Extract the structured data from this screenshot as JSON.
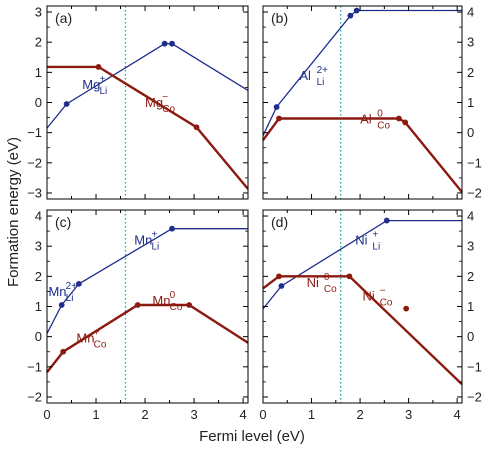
{
  "figure": {
    "xlabel": "Fermi level (eV)",
    "ylabel": "Formation energy (eV)"
  },
  "colors": {
    "blue": "#1f2e8c",
    "red": "#8b1a10",
    "marker_line": "#1aa3a3",
    "frame": "#000000"
  },
  "chart_data": [
    {
      "type": "line",
      "panel": "(a)",
      "xlim": [
        0,
        4.1
      ],
      "ylim": [
        -3.2,
        3.2
      ],
      "yticks": [
        -3,
        -2,
        -1,
        0,
        1,
        2,
        3
      ],
      "xticks": [],
      "ytick_side": "left",
      "fermi_marker_x": 1.6,
      "series": [
        {
          "color": "blue",
          "label": {
            "base": "Mg",
            "sub": "Li",
            "sup": "+"
          },
          "label_at": [
            0.72,
            0.45
          ],
          "x": [
            0,
            0.4,
            2.4,
            2.55,
            4.1
          ],
          "y": [
            -0.85,
            -0.05,
            1.95,
            1.95,
            0.4
          ],
          "markers": [
            1,
            2,
            3
          ]
        },
        {
          "color": "red",
          "label": {
            "base": "Mg",
            "sub": "Co",
            "sup": "−"
          },
          "label_at": [
            2.0,
            -0.15
          ],
          "x": [
            0,
            1.05,
            3.05,
            4.1
          ],
          "y": [
            1.18,
            1.18,
            -0.82,
            -2.87
          ],
          "markers": [
            1,
            2
          ]
        }
      ]
    },
    {
      "type": "line",
      "panel": "(b)",
      "xlim": [
        0,
        4.1
      ],
      "ylim": [
        -2.2,
        4.2
      ],
      "yticks": [
        -2,
        -1,
        0,
        1,
        2,
        3,
        4
      ],
      "xticks": [],
      "ytick_side": "right",
      "fermi_marker_x": 1.6,
      "series": [
        {
          "color": "blue",
          "label": {
            "base": "Al",
            "sub": "Li",
            "sup": "2+"
          },
          "label_at": [
            0.75,
            1.75
          ],
          "x": [
            0,
            0.28,
            1.8,
            1.93,
            4.1
          ],
          "y": [
            -0.1,
            0.85,
            3.88,
            4.05,
            4.05
          ],
          "markers": [
            1,
            2,
            3
          ]
        },
        {
          "color": "red",
          "label": {
            "base": "Al",
            "sub": "Co",
            "sup": "0"
          },
          "label_at": [
            2.0,
            0.3
          ],
          "x": [
            0,
            0.33,
            2.8,
            2.93,
            4.1
          ],
          "y": [
            -0.25,
            0.47,
            0.47,
            0.34,
            -1.97
          ],
          "markers": [
            1,
            2,
            3
          ]
        }
      ]
    },
    {
      "type": "line",
      "panel": "(c)",
      "xlim": [
        0,
        4.1
      ],
      "ylim": [
        -2.2,
        4.2
      ],
      "yticks": [
        -2,
        -1,
        0,
        1,
        2,
        3,
        4
      ],
      "xticks": [
        0,
        1,
        2,
        3,
        4
      ],
      "ytick_side": "left",
      "fermi_marker_x": 1.6,
      "series": [
        {
          "color": "blue",
          "label": {
            "base": "Mn",
            "sub": "Li",
            "sup": "2+"
          },
          "label_at": [
            0.03,
            1.35
          ],
          "x": [
            0,
            0.3,
            0.65,
            2.55,
            4.1
          ],
          "y": [
            0.1,
            1.05,
            1.75,
            3.58,
            3.58
          ],
          "markers": [
            1,
            2,
            3
          ]
        },
        {
          "color": "blue",
          "label": {
            "base": "Mn",
            "sub": "Li",
            "sup": "+"
          },
          "label_at": [
            1.78,
            3.05
          ],
          "x": [],
          "y": [],
          "markers": []
        },
        {
          "color": "red",
          "label": {
            "base": "Mn",
            "sub": "Co",
            "sup": "+"
          },
          "label_at": [
            0.6,
            -0.2
          ],
          "x": [
            0,
            0.33,
            1.85,
            2.9,
            4.1
          ],
          "y": [
            -1.18,
            -0.5,
            1.05,
            1.05,
            -0.2
          ],
          "markers": [
            1,
            2,
            3
          ]
        },
        {
          "color": "red",
          "label": {
            "base": "Mn",
            "sub": "Co",
            "sup": "0"
          },
          "label_at": [
            2.15,
            1.05
          ],
          "x": [],
          "y": [],
          "markers": []
        }
      ]
    },
    {
      "type": "line",
      "panel": "(d)",
      "xlim": [
        0,
        4.1
      ],
      "ylim": [
        -2.2,
        4.2
      ],
      "yticks": [
        -2,
        -1,
        0,
        1,
        2,
        3,
        4
      ],
      "xticks": [
        0,
        1,
        2,
        3,
        4
      ],
      "ytick_side": "right",
      "fermi_marker_x": 1.6,
      "series": [
        {
          "color": "blue",
          "label": {
            "base": "Ni",
            "sub": "Li",
            "sup": "+"
          },
          "label_at": [
            1.9,
            3.05
          ],
          "x": [
            0,
            0.38,
            2.55,
            4.1
          ],
          "y": [
            0.92,
            1.68,
            3.85,
            3.85
          ],
          "markers": [
            1,
            2
          ]
        },
        {
          "color": "red",
          "label": {
            "base": "Ni",
            "sub": "Co",
            "sup": "0"
          },
          "label_at": [
            0.9,
            1.65
          ],
          "x": [
            0,
            0.33,
            1.7,
            1.78,
            4.1
          ],
          "y": [
            1.6,
            2.0,
            2.0,
            2.0,
            -1.58
          ],
          "markers": [
            1,
            3
          ]
        },
        {
          "color": "red",
          "label": {
            "base": "Ni",
            "sub": "Co",
            "sup": "−"
          },
          "label_at": [
            2.05,
            1.2
          ],
          "x": [
            2.95
          ],
          "y": [
            0.93
          ],
          "markers": [
            0
          ]
        }
      ]
    }
  ]
}
